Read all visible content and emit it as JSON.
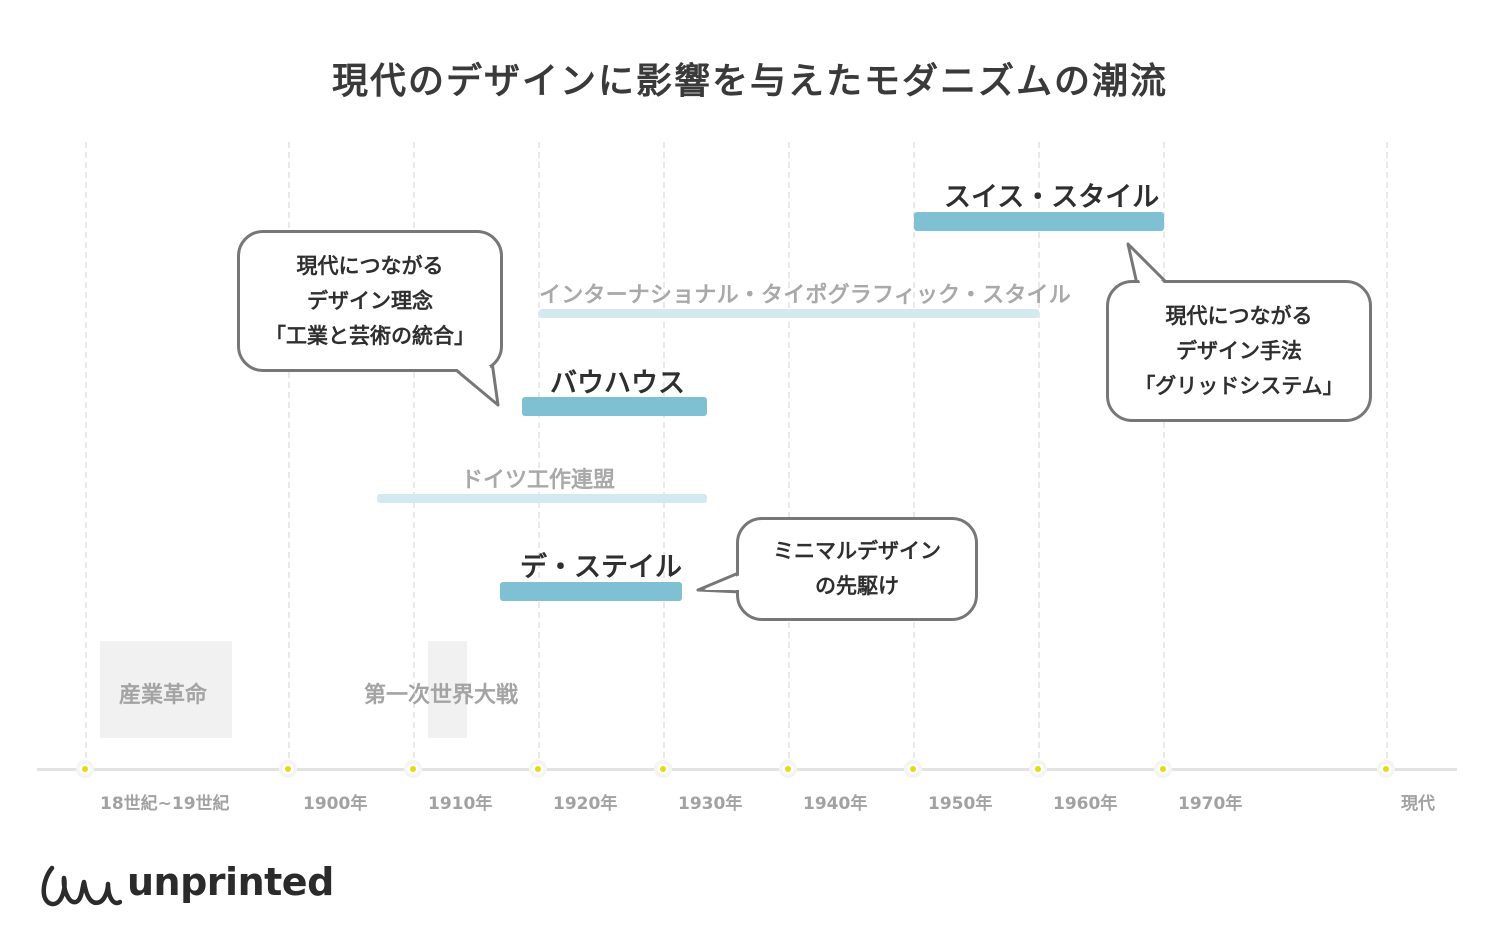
{
  "title": "現代のデザインに影響を与えたモダニズムの潮流",
  "timeline": {
    "ticks": [
      "18世紀~19世紀",
      "1900年",
      "1910年",
      "1920年",
      "1930年",
      "1940年",
      "1950年",
      "1960年",
      "1970年",
      "現代"
    ]
  },
  "events": [
    {
      "label": "産業革命"
    },
    {
      "label": "第一次世界大戦"
    }
  ],
  "movements": [
    {
      "label": "スイス・スタイル",
      "style": "main",
      "color": "#7fc1d2",
      "start": 1950,
      "end": 1970
    },
    {
      "label": "インターナショナル・タイポグラフィック・スタイル",
      "style": "sub",
      "color": "#d3e9f0",
      "start": 1920,
      "end": 1960
    },
    {
      "label": "バウハウス",
      "style": "main",
      "color": "#7fc1d2",
      "start": 1919,
      "end": 1933
    },
    {
      "label": "ドイツ工作連盟",
      "style": "sub",
      "color": "#d3e9f0",
      "start": 1907,
      "end": 1933
    },
    {
      "label": "デ・ステイル",
      "style": "main",
      "color": "#7fc1d2",
      "start": 1917,
      "end": 1931
    }
  ],
  "callouts": [
    {
      "lines": [
        "現代につながる",
        "デザイン理念",
        "「工業と芸術の統合」"
      ]
    },
    {
      "lines": [
        "現代につながる",
        "デザイン手法",
        "「グリッドシステム」"
      ]
    },
    {
      "lines": [
        "ミニマルデザイン",
        "の先駆け"
      ]
    }
  ],
  "brand": {
    "name": "unprinted"
  },
  "colors": {
    "accent_dot": "#e6d916",
    "bar_main": "#7fc1d2",
    "bar_sub": "#d3e9f0",
    "bubble_border": "#777777"
  }
}
